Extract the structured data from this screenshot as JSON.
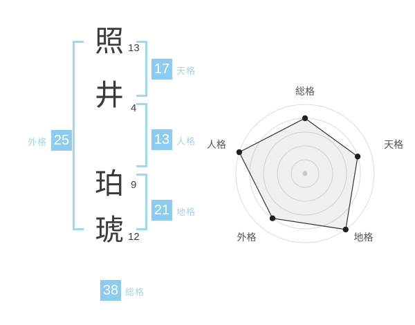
{
  "page": {
    "background": "#ffffff"
  },
  "name": {
    "characters": [
      {
        "char": "照",
        "strokes": "13"
      },
      {
        "char": "井",
        "strokes": "4"
      },
      {
        "char": "珀",
        "strokes": "9"
      },
      {
        "char": "琥",
        "strokes": "12"
      }
    ]
  },
  "kaku": [
    {
      "id": "tenkaku",
      "label": "天格",
      "value": "17"
    },
    {
      "id": "jinkaku",
      "label": "人格",
      "value": "13"
    },
    {
      "id": "chikaku",
      "label": "地格",
      "value": "21"
    },
    {
      "id": "gaikaku",
      "label": "外格",
      "value": "25"
    },
    {
      "id": "soukaku",
      "label": "総格",
      "value": "38"
    }
  ],
  "colors": {
    "accent_blue": "#8bccf0",
    "label_blue": "#a3d6f2",
    "bracket_blue": "#9fd8f5",
    "text_dark": "#3a3a3a",
    "radar_grid": "#dcdcdc",
    "radar_line": "#333333",
    "radar_label": "#555555"
  },
  "chart_data": {
    "type": "radar",
    "categories": [
      "総格",
      "天格",
      "地格",
      "外格",
      "人格"
    ],
    "values": [
      80,
      80,
      100,
      80,
      100
    ],
    "max": 100,
    "rings": 5,
    "start_axis": "top",
    "direction": "clockwise",
    "grid": "circular",
    "legend": "none",
    "title": ""
  }
}
